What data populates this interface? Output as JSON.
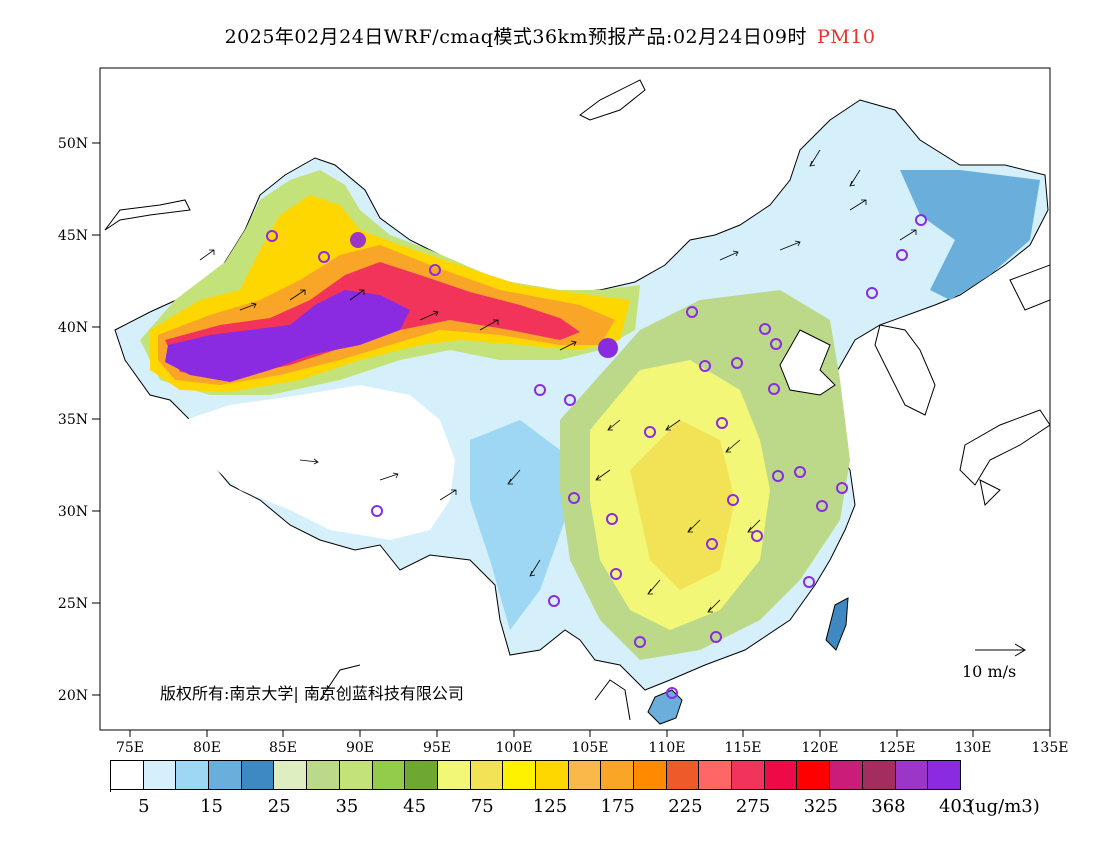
{
  "header": {
    "title": "2025年02月24日WRF/cmaq模式36km预报产品:02月24日09时",
    "pollutant": "PM10",
    "pollutant_color": "#e8322a"
  },
  "map": {
    "lat_ticks": [
      "50N",
      "45N",
      "40N",
      "35N",
      "30N",
      "25N",
      "20N"
    ],
    "lon_ticks": [
      "75E",
      "80E",
      "85E",
      "90E",
      "95E",
      "100E",
      "105E",
      "110E",
      "115E",
      "120E",
      "125E",
      "130E",
      "135E"
    ],
    "wind_reference_label": "10 m/s",
    "copyright": "版权所有:南京大学| 南京创蓝科技有限公司"
  },
  "legend": {
    "colors": [
      "#ffffff",
      "#d5effb",
      "#9dd7f3",
      "#6aaedc",
      "#3f89c2",
      "#dfeec0",
      "#bcd98a",
      "#c4e27a",
      "#93cc4a",
      "#6fa830",
      "#f3f777",
      "#f2e356",
      "#fff200",
      "#ffd700",
      "#f8b84a",
      "#f9a628",
      "#ff8a00",
      "#ef5a2a",
      "#ff6767",
      "#f2345a",
      "#ee0a47",
      "#ff0000",
      "#cc1c7a",
      "#a32e5e",
      "#9b36c8",
      "#8a2be2"
    ],
    "labels": [
      "5",
      "15",
      "25",
      "35",
      "45",
      "75",
      "125",
      "175",
      "225",
      "275",
      "325",
      "368",
      "403"
    ],
    "unit": "(ug/m3)"
  },
  "stations_color": "#8a2be2"
}
